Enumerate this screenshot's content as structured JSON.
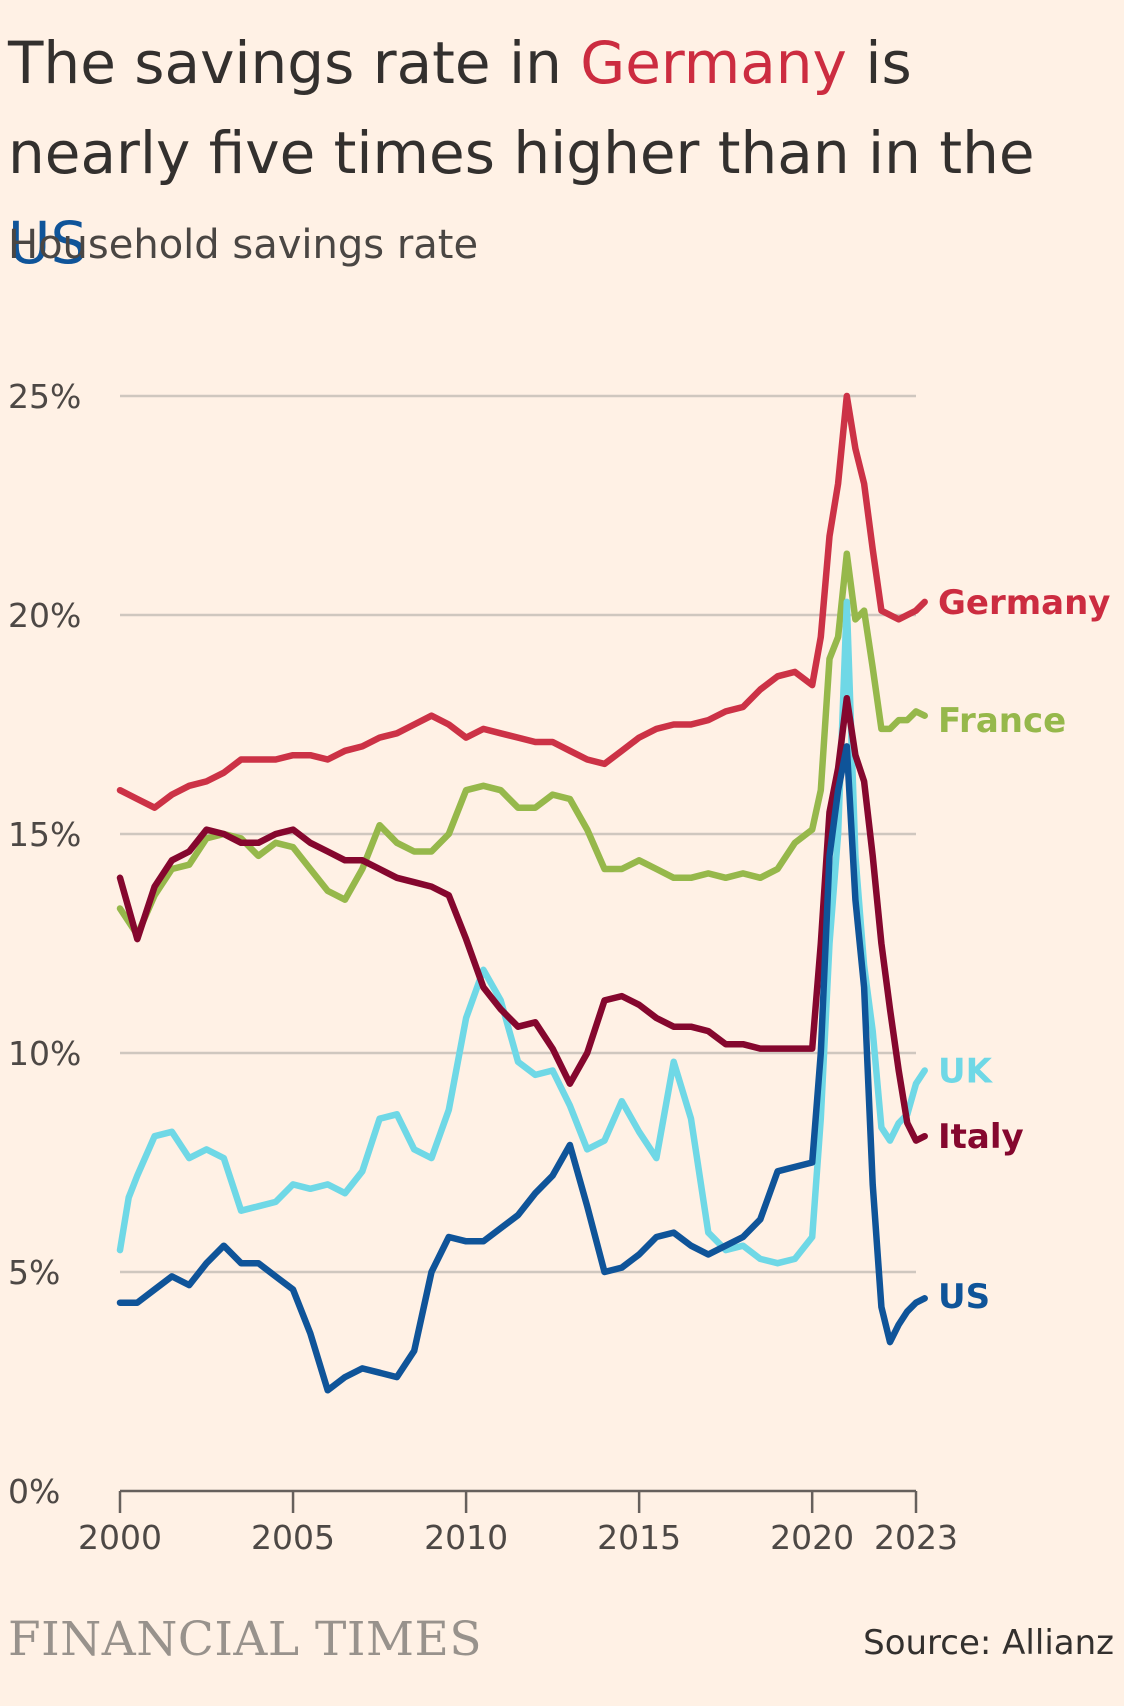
{
  "title": {
    "prefix": "The savings rate in ",
    "highlight1": "Germany",
    "middle": " is nearly five times higher than in the ",
    "highlight2": "US",
    "highlight1_color": "#cc2c40",
    "highlight2_color": "#0f5499"
  },
  "subtitle": "Household savings rate",
  "brand": "FINANCIAL TIMES",
  "source": "Source: Allianz",
  "chart_data": {
    "type": "line",
    "grid": true,
    "legend": "end-of-line labels",
    "xlim": [
      2000,
      2023
    ],
    "ylim": [
      0,
      25
    ],
    "x_ticks": [
      2000,
      2005,
      2010,
      2015,
      2020,
      2023
    ],
    "x_tick_labels": [
      "2000",
      "2005",
      "2010",
      "2015",
      "2020",
      "2023"
    ],
    "y_ticks": [
      0,
      5,
      10,
      15,
      20,
      25
    ],
    "y_tick_labels": [
      "0%",
      "5%",
      "10%",
      "15%",
      "20%",
      "25%"
    ],
    "series": [
      {
        "name": "Germany",
        "color": "#cc3246",
        "points": [
          [
            2000,
            16.0
          ],
          [
            2000.5,
            15.8
          ],
          [
            2001,
            15.6
          ],
          [
            2001.5,
            15.9
          ],
          [
            2002,
            16.1
          ],
          [
            2002.5,
            16.2
          ],
          [
            2003,
            16.4
          ],
          [
            2003.5,
            16.7
          ],
          [
            2004,
            16.7
          ],
          [
            2004.5,
            16.7
          ],
          [
            2005,
            16.8
          ],
          [
            2005.5,
            16.8
          ],
          [
            2006,
            16.7
          ],
          [
            2006.5,
            16.9
          ],
          [
            2007,
            17.0
          ],
          [
            2007.5,
            17.2
          ],
          [
            2008,
            17.3
          ],
          [
            2008.5,
            17.5
          ],
          [
            2009,
            17.7
          ],
          [
            2009.5,
            17.5
          ],
          [
            2010,
            17.2
          ],
          [
            2010.5,
            17.4
          ],
          [
            2011,
            17.3
          ],
          [
            2011.5,
            17.2
          ],
          [
            2012,
            17.1
          ],
          [
            2012.5,
            17.1
          ],
          [
            2013,
            16.9
          ],
          [
            2013.5,
            16.7
          ],
          [
            2014,
            16.6
          ],
          [
            2014.5,
            16.9
          ],
          [
            2015,
            17.2
          ],
          [
            2015.5,
            17.4
          ],
          [
            2016,
            17.5
          ],
          [
            2016.5,
            17.5
          ],
          [
            2017,
            17.6
          ],
          [
            2017.5,
            17.8
          ],
          [
            2018,
            17.9
          ],
          [
            2018.5,
            18.3
          ],
          [
            2019,
            18.6
          ],
          [
            2019.5,
            18.7
          ],
          [
            2020,
            18.4
          ],
          [
            2020.25,
            19.5
          ],
          [
            2020.5,
            21.8
          ],
          [
            2020.75,
            23.0
          ],
          [
            2021,
            25.0
          ],
          [
            2021.25,
            23.8
          ],
          [
            2021.5,
            23.0
          ],
          [
            2021.75,
            21.5
          ],
          [
            2022,
            20.1
          ],
          [
            2022.25,
            20.0
          ],
          [
            2022.5,
            19.9
          ],
          [
            2022.75,
            20.0
          ],
          [
            2023,
            20.1
          ],
          [
            2023.25,
            20.3
          ]
        ]
      },
      {
        "name": "France",
        "color": "#96b84b",
        "points": [
          [
            2000,
            13.3
          ],
          [
            2000.5,
            12.7
          ],
          [
            2001,
            13.6
          ],
          [
            2001.5,
            14.2
          ],
          [
            2002,
            14.3
          ],
          [
            2002.5,
            14.9
          ],
          [
            2003,
            15.0
          ],
          [
            2003.5,
            14.9
          ],
          [
            2004,
            14.5
          ],
          [
            2004.5,
            14.8
          ],
          [
            2005,
            14.7
          ],
          [
            2005.5,
            14.2
          ],
          [
            2006,
            13.7
          ],
          [
            2006.5,
            13.5
          ],
          [
            2007,
            14.2
          ],
          [
            2007.5,
            15.2
          ],
          [
            2008,
            14.8
          ],
          [
            2008.5,
            14.6
          ],
          [
            2009,
            14.6
          ],
          [
            2009.5,
            15.0
          ],
          [
            2010,
            16.0
          ],
          [
            2010.5,
            16.1
          ],
          [
            2011,
            16.0
          ],
          [
            2011.5,
            15.6
          ],
          [
            2012,
            15.6
          ],
          [
            2012.5,
            15.9
          ],
          [
            2013,
            15.8
          ],
          [
            2013.5,
            15.1
          ],
          [
            2014,
            14.2
          ],
          [
            2014.5,
            14.2
          ],
          [
            2015,
            14.4
          ],
          [
            2015.5,
            14.2
          ],
          [
            2016,
            14.0
          ],
          [
            2016.5,
            14.0
          ],
          [
            2017,
            14.1
          ],
          [
            2017.5,
            14.0
          ],
          [
            2018,
            14.1
          ],
          [
            2018.5,
            14.0
          ],
          [
            2019,
            14.2
          ],
          [
            2019.5,
            14.8
          ],
          [
            2020,
            15.1
          ],
          [
            2020.25,
            16.0
          ],
          [
            2020.5,
            19.0
          ],
          [
            2020.75,
            19.5
          ],
          [
            2021,
            21.4
          ],
          [
            2021.25,
            19.9
          ],
          [
            2021.5,
            20.1
          ],
          [
            2021.75,
            18.8
          ],
          [
            2022,
            17.4
          ],
          [
            2022.25,
            17.4
          ],
          [
            2022.5,
            17.6
          ],
          [
            2022.75,
            17.6
          ],
          [
            2023,
            17.8
          ],
          [
            2023.25,
            17.7
          ]
        ]
      },
      {
        "name": "UK",
        "color": "#6fd8e6",
        "points": [
          [
            2000,
            5.5
          ],
          [
            2000.25,
            6.7
          ],
          [
            2000.5,
            7.2
          ],
          [
            2001,
            8.1
          ],
          [
            2001.5,
            8.2
          ],
          [
            2002,
            7.6
          ],
          [
            2002.5,
            7.8
          ],
          [
            2003,
            7.6
          ],
          [
            2003.5,
            6.4
          ],
          [
            2004,
            6.5
          ],
          [
            2004.5,
            6.6
          ],
          [
            2005,
            7.0
          ],
          [
            2005.5,
            6.9
          ],
          [
            2006,
            7.0
          ],
          [
            2006.5,
            6.8
          ],
          [
            2007,
            7.3
          ],
          [
            2007.5,
            8.5
          ],
          [
            2008,
            8.6
          ],
          [
            2008.5,
            7.8
          ],
          [
            2009,
            7.6
          ],
          [
            2009.5,
            8.7
          ],
          [
            2010,
            10.8
          ],
          [
            2010.5,
            11.9
          ],
          [
            2011,
            11.2
          ],
          [
            2011.5,
            9.8
          ],
          [
            2012,
            9.5
          ],
          [
            2012.5,
            9.6
          ],
          [
            2013,
            8.8
          ],
          [
            2013.5,
            7.8
          ],
          [
            2014,
            8.0
          ],
          [
            2014.5,
            8.9
          ],
          [
            2015,
            8.2
          ],
          [
            2015.5,
            7.6
          ],
          [
            2016,
            9.8
          ],
          [
            2016.5,
            8.5
          ],
          [
            2017,
            5.9
          ],
          [
            2017.5,
            5.5
          ],
          [
            2018,
            5.6
          ],
          [
            2018.5,
            5.3
          ],
          [
            2019,
            5.2
          ],
          [
            2019.5,
            5.3
          ],
          [
            2020,
            5.8
          ],
          [
            2020.25,
            8.5
          ],
          [
            2020.5,
            12.5
          ],
          [
            2020.75,
            15.0
          ],
          [
            2021,
            20.3
          ],
          [
            2021.25,
            14.5
          ],
          [
            2021.5,
            12.0
          ],
          [
            2021.75,
            10.5
          ],
          [
            2022,
            8.3
          ],
          [
            2022.25,
            8.0
          ],
          [
            2022.5,
            8.4
          ],
          [
            2022.75,
            8.6
          ],
          [
            2023,
            9.3
          ],
          [
            2023.25,
            9.6
          ]
        ]
      },
      {
        "name": "Italy",
        "color": "#85072e",
        "points": [
          [
            2000,
            14.0
          ],
          [
            2000.25,
            13.3
          ],
          [
            2000.5,
            12.6
          ],
          [
            2001,
            13.8
          ],
          [
            2001.5,
            14.4
          ],
          [
            2002,
            14.6
          ],
          [
            2002.5,
            15.1
          ],
          [
            2003,
            15.0
          ],
          [
            2003.5,
            14.8
          ],
          [
            2004,
            14.8
          ],
          [
            2004.5,
            15.0
          ],
          [
            2005,
            15.1
          ],
          [
            2005.5,
            14.8
          ],
          [
            2006,
            14.6
          ],
          [
            2006.5,
            14.4
          ],
          [
            2007,
            14.4
          ],
          [
            2007.5,
            14.2
          ],
          [
            2008,
            14.0
          ],
          [
            2008.5,
            13.9
          ],
          [
            2009,
            13.8
          ],
          [
            2009.5,
            13.6
          ],
          [
            2010,
            12.6
          ],
          [
            2010.5,
            11.5
          ],
          [
            2011,
            11.0
          ],
          [
            2011.5,
            10.6
          ],
          [
            2012,
            10.7
          ],
          [
            2012.5,
            10.1
          ],
          [
            2013,
            9.3
          ],
          [
            2013.5,
            10.0
          ],
          [
            2014,
            11.2
          ],
          [
            2014.5,
            11.3
          ],
          [
            2015,
            11.1
          ],
          [
            2015.5,
            10.8
          ],
          [
            2016,
            10.6
          ],
          [
            2016.5,
            10.6
          ],
          [
            2017,
            10.5
          ],
          [
            2017.5,
            10.2
          ],
          [
            2018,
            10.2
          ],
          [
            2018.5,
            10.1
          ],
          [
            2019,
            10.1
          ],
          [
            2019.5,
            10.1
          ],
          [
            2020,
            10.1
          ],
          [
            2020.25,
            12.5
          ],
          [
            2020.5,
            15.5
          ],
          [
            2020.75,
            16.5
          ],
          [
            2021,
            18.1
          ],
          [
            2021.25,
            16.8
          ],
          [
            2021.5,
            16.2
          ],
          [
            2021.75,
            14.5
          ],
          [
            2022,
            12.5
          ],
          [
            2022.25,
            11.0
          ],
          [
            2022.5,
            9.6
          ],
          [
            2022.75,
            8.4
          ],
          [
            2023,
            8.0
          ],
          [
            2023.25,
            8.1
          ]
        ]
      },
      {
        "name": "US",
        "color": "#0f5499",
        "points": [
          [
            2000,
            4.3
          ],
          [
            2000.5,
            4.3
          ],
          [
            2001,
            4.6
          ],
          [
            2001.5,
            4.9
          ],
          [
            2002,
            4.7
          ],
          [
            2002.5,
            5.2
          ],
          [
            2003,
            5.6
          ],
          [
            2003.5,
            5.2
          ],
          [
            2004,
            5.2
          ],
          [
            2004.5,
            4.9
          ],
          [
            2005,
            4.6
          ],
          [
            2005.5,
            3.6
          ],
          [
            2006,
            2.3
          ],
          [
            2006.5,
            2.6
          ],
          [
            2007,
            2.8
          ],
          [
            2007.5,
            2.7
          ],
          [
            2008,
            2.6
          ],
          [
            2008.5,
            3.2
          ],
          [
            2009,
            5.0
          ],
          [
            2009.5,
            5.8
          ],
          [
            2010,
            5.7
          ],
          [
            2010.5,
            5.7
          ],
          [
            2011,
            6.0
          ],
          [
            2011.5,
            6.3
          ],
          [
            2012,
            6.8
          ],
          [
            2012.5,
            7.2
          ],
          [
            2013,
            7.9
          ],
          [
            2013.5,
            6.5
          ],
          [
            2014,
            5.0
          ],
          [
            2014.5,
            5.1
          ],
          [
            2015,
            5.4
          ],
          [
            2015.5,
            5.8
          ],
          [
            2016,
            5.9
          ],
          [
            2016.5,
            5.6
          ],
          [
            2017,
            5.4
          ],
          [
            2017.5,
            5.6
          ],
          [
            2018,
            5.8
          ],
          [
            2018.5,
            6.2
          ],
          [
            2019,
            7.3
          ],
          [
            2019.5,
            7.4
          ],
          [
            2020,
            7.5
          ],
          [
            2020.25,
            10.0
          ],
          [
            2020.5,
            14.5
          ],
          [
            2020.75,
            16.0
          ],
          [
            2021,
            17.0
          ],
          [
            2021.25,
            13.5
          ],
          [
            2021.5,
            11.5
          ],
          [
            2021.75,
            7.0
          ],
          [
            2022,
            4.2
          ],
          [
            2022.25,
            3.4
          ],
          [
            2022.5,
            3.8
          ],
          [
            2022.75,
            4.1
          ],
          [
            2023,
            4.3
          ],
          [
            2023.25,
            4.4
          ]
        ]
      }
    ],
    "end_labels": [
      {
        "text": "Germany",
        "color": "#cc2c40",
        "y_value": 20.3
      },
      {
        "text": "France",
        "color": "#96b84b",
        "y_value": 17.6
      },
      {
        "text": "UK",
        "color": "#6fd8e6",
        "y_value": 9.6
      },
      {
        "text": "Italy",
        "color": "#85072e",
        "y_value": 8.1
      },
      {
        "text": "US",
        "color": "#0f5499",
        "y_value": 4.45
      }
    ]
  }
}
